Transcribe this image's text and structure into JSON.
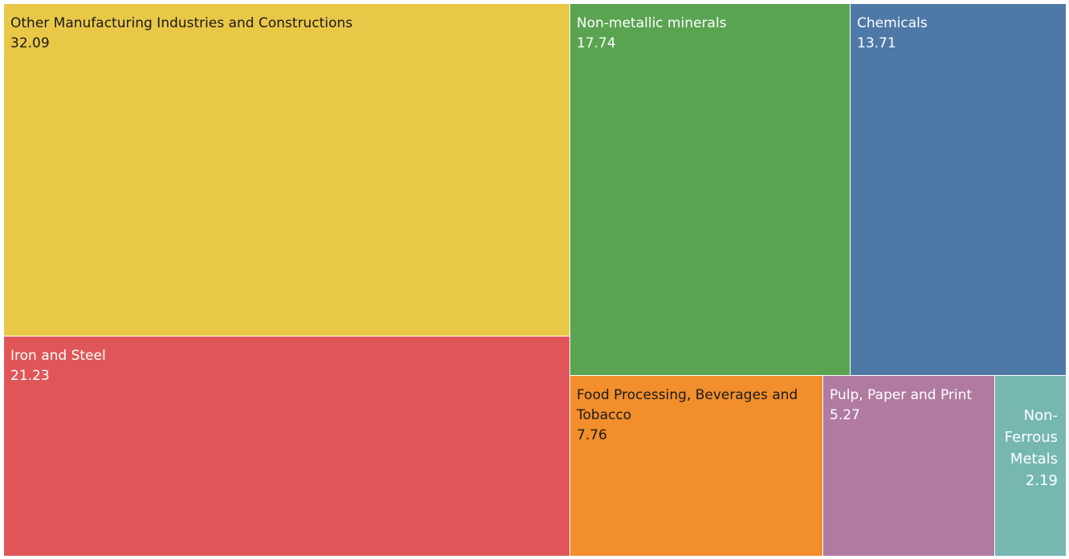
{
  "chart_data": {
    "type": "treemap",
    "items": [
      {
        "name": "Other Manufacturing Industries and Constructions",
        "value": 32.09,
        "value_label": "32.09",
        "color": "#E9C848",
        "text_color": "#1a1a1a"
      },
      {
        "name": "Iron and Steel",
        "value": 21.23,
        "value_label": "21.23",
        "color": "#E05658",
        "text_color": "#ffffff"
      },
      {
        "name": "Non-metallic minerals",
        "value": 17.74,
        "value_label": "17.74",
        "color": "#5AA451",
        "text_color": "#ffffff"
      },
      {
        "name": "Chemicals",
        "value": 13.71,
        "value_label": "13.71",
        "color": "#4E79A7",
        "text_color": "#ffffff"
      },
      {
        "name": "Food Processing, Beverages and Tobacco",
        "value": 7.76,
        "value_label": "7.76",
        "color": "#F28E2B",
        "text_color": "#1a1a1a"
      },
      {
        "name": "Pulp, Paper and Print",
        "value": 5.27,
        "value_label": "5.27",
        "color": "#B07AA1",
        "text_color": "#ffffff"
      },
      {
        "name": "Non-Ferrous Metals",
        "value": 2.19,
        "value_label": "2.19",
        "color": "#76B7B2",
        "text_color": "#ffffff"
      }
    ]
  }
}
